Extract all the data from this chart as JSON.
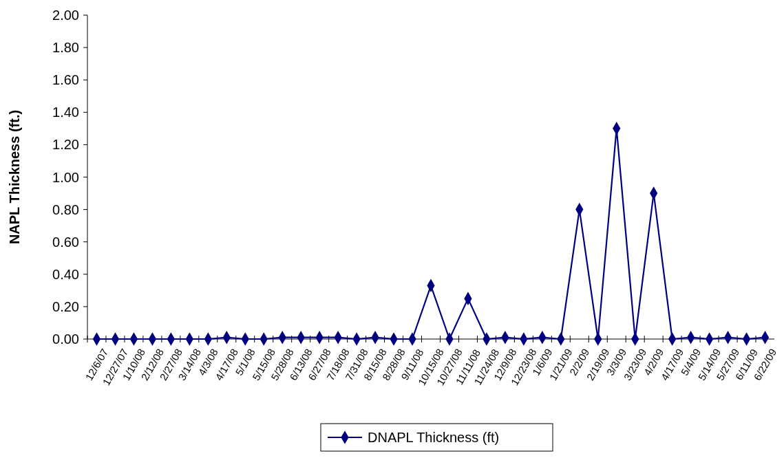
{
  "chart_data": {
    "type": "line",
    "ylabel": "NAPL Thickness (ft.)",
    "categories": [
      "12/6/07",
      "12/27/07",
      "1/10/08",
      "2/12/08",
      "2/27/08",
      "3/14/08",
      "4/3/08",
      "4/17/08",
      "5/1/08",
      "5/15/08",
      "5/28/08",
      "6/13/08",
      "6/27/08",
      "7/18/08",
      "7/31/08",
      "8/15/08",
      "8/28/08",
      "9/11/08",
      "10/15/08",
      "10/27/08",
      "11/11/08",
      "11/24/08",
      "12/9/08",
      "12/23/08",
      "1/6/09",
      "1/21/09",
      "2/2/09",
      "2/19/09",
      "3/3/09",
      "3/23/09",
      "4/2/09",
      "4/17/09",
      "5/4/09",
      "5/14/09",
      "5/27/09",
      "6/11/09",
      "6/22/09"
    ],
    "series": [
      {
        "name": "DNAPL Thickness (ft)",
        "color": "#000080",
        "values": [
          0,
          0,
          0,
          0,
          0,
          0,
          0,
          0.01,
          0,
          0,
          0.01,
          0.01,
          0.01,
          0.01,
          0,
          0.01,
          0,
          0,
          0.33,
          0,
          0.25,
          0,
          0.01,
          0,
          0.01,
          0,
          0.8,
          0,
          1.3,
          0,
          0.9,
          0,
          0.01,
          0,
          0.01,
          0,
          0.01
        ]
      }
    ],
    "ylim": [
      0,
      2
    ],
    "yticks": [
      {
        "value": 0,
        "label": "0.00"
      },
      {
        "value": 0.2,
        "label": "0.20"
      },
      {
        "value": 0.4,
        "label": "0.40"
      },
      {
        "value": 0.6,
        "label": "0.60"
      },
      {
        "value": 0.8,
        "label": "0.80"
      },
      {
        "value": 1,
        "label": "1.00"
      },
      {
        "value": 1.2,
        "label": "1.20"
      },
      {
        "value": 1.4,
        "label": "1.40"
      },
      {
        "value": 1.6,
        "label": "1.60"
      },
      {
        "value": 1.8,
        "label": "1.80"
      },
      {
        "value": 2,
        "label": "2.00"
      }
    ],
    "grid": false,
    "legend": "bottom",
    "marker": "diamond",
    "line_style": "solid"
  }
}
